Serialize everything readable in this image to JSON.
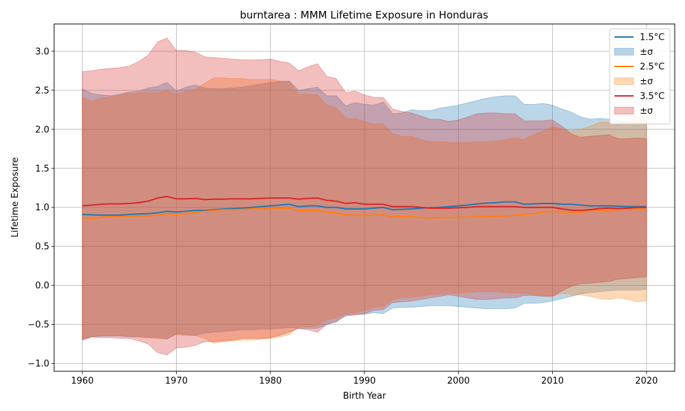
{
  "chart_data": {
    "type": "line",
    "title": "burntarea : MMM Lifetime Exposure in Honduras",
    "xlabel": "Birth Year",
    "ylabel": "Lifetime Exposure",
    "xlim": [
      1957,
      2023
    ],
    "ylim": [
      -1.1,
      3.35
    ],
    "xticks": [
      1960,
      1970,
      1980,
      1990,
      2000,
      2010,
      2020
    ],
    "xtick_labels": [
      "1960",
      "1970",
      "1980",
      "1990",
      "2000",
      "2010",
      "2020"
    ],
    "yticks": [
      -1.0,
      -0.5,
      0.0,
      0.5,
      1.0,
      1.5,
      2.0,
      2.5,
      3.0
    ],
    "ytick_labels": [
      "−1.0",
      "−0.5",
      "0.0",
      "0.5",
      "1.0",
      "1.5",
      "2.0",
      "2.5",
      "3.0"
    ],
    "grid": true,
    "legend_position": "top-right",
    "x": [
      1960,
      1961,
      1962,
      1963,
      1964,
      1965,
      1966,
      1967,
      1968,
      1969,
      1970,
      1971,
      1972,
      1973,
      1974,
      1975,
      1976,
      1977,
      1978,
      1979,
      1980,
      1981,
      1982,
      1983,
      1984,
      1985,
      1986,
      1987,
      1988,
      1989,
      1990,
      1991,
      1992,
      1993,
      1994,
      1995,
      1996,
      1997,
      1998,
      1999,
      2000,
      2001,
      2002,
      2003,
      2004,
      2005,
      2006,
      2007,
      2008,
      2009,
      2010,
      2011,
      2012,
      2013,
      2014,
      2015,
      2016,
      2017,
      2018,
      2019,
      2020
    ],
    "series": [
      {
        "name": "1.5°C",
        "band_label": "±σ",
        "color": "#1f77b4",
        "band_color": "#1f77b4",
        "mean": [
          0.91,
          0.905,
          0.9,
          0.9,
          0.9,
          0.91,
          0.915,
          0.92,
          0.93,
          0.95,
          0.94,
          0.95,
          0.96,
          0.96,
          0.97,
          0.98,
          0.985,
          0.99,
          1.0,
          1.01,
          1.02,
          1.03,
          1.04,
          1.01,
          1.02,
          1.02,
          1.0,
          1.0,
          0.98,
          0.98,
          0.98,
          0.99,
          1.0,
          0.97,
          0.975,
          0.98,
          0.99,
          0.995,
          1.0,
          1.01,
          1.02,
          1.03,
          1.045,
          1.055,
          1.06,
          1.07,
          1.07,
          1.04,
          1.045,
          1.05,
          1.05,
          1.04,
          1.04,
          1.03,
          1.02,
          1.02,
          1.02,
          1.015,
          1.01,
          1.01,
          1.01
        ],
        "upper": [
          2.52,
          2.46,
          2.44,
          2.43,
          2.45,
          2.48,
          2.49,
          2.53,
          2.55,
          2.6,
          2.49,
          2.54,
          2.57,
          2.53,
          2.52,
          2.52,
          2.53,
          2.54,
          2.56,
          2.58,
          2.6,
          2.61,
          2.62,
          2.5,
          2.52,
          2.54,
          2.43,
          2.43,
          2.3,
          2.34,
          2.32,
          2.31,
          2.35,
          2.2,
          2.21,
          2.25,
          2.24,
          2.24,
          2.27,
          2.29,
          2.31,
          2.34,
          2.37,
          2.4,
          2.42,
          2.43,
          2.43,
          2.32,
          2.32,
          2.33,
          2.31,
          2.26,
          2.22,
          2.16,
          2.13,
          2.14,
          2.13,
          2.11,
          2.09,
          2.08,
          2.08
        ],
        "lower": [
          -0.7,
          -0.66,
          -0.65,
          -0.65,
          -0.65,
          -0.66,
          -0.66,
          -0.67,
          -0.67,
          -0.69,
          -0.62,
          -0.63,
          -0.64,
          -0.61,
          -0.6,
          -0.59,
          -0.58,
          -0.57,
          -0.57,
          -0.56,
          -0.56,
          -0.55,
          -0.54,
          -0.55,
          -0.55,
          -0.55,
          -0.5,
          -0.47,
          -0.38,
          -0.37,
          -0.37,
          -0.35,
          -0.36,
          -0.29,
          -0.28,
          -0.28,
          -0.27,
          -0.26,
          -0.26,
          -0.26,
          -0.27,
          -0.28,
          -0.29,
          -0.3,
          -0.3,
          -0.3,
          -0.29,
          -0.23,
          -0.23,
          -0.22,
          -0.2,
          -0.17,
          -0.14,
          -0.11,
          -0.09,
          -0.08,
          -0.07,
          -0.06,
          -0.06,
          -0.06,
          -0.05
        ]
      },
      {
        "name": "2.5°C",
        "band_label": "±σ",
        "color": "#ff7f0e",
        "band_color": "#ff7f0e",
        "mean": [
          0.87,
          0.86,
          0.87,
          0.88,
          0.88,
          0.885,
          0.89,
          0.89,
          0.9,
          0.92,
          0.91,
          0.92,
          0.93,
          0.95,
          0.96,
          0.97,
          0.97,
          0.975,
          0.98,
          0.98,
          0.985,
          0.985,
          0.985,
          0.96,
          0.96,
          0.96,
          0.94,
          0.93,
          0.9,
          0.9,
          0.895,
          0.9,
          0.905,
          0.88,
          0.88,
          0.88,
          0.87,
          0.865,
          0.87,
          0.87,
          0.87,
          0.875,
          0.88,
          0.88,
          0.885,
          0.89,
          0.9,
          0.91,
          0.92,
          0.94,
          0.95,
          0.94,
          0.94,
          0.94,
          0.95,
          0.96,
          0.965,
          0.97,
          0.975,
          0.98,
          0.98
        ],
        "upper": [
          2.41,
          2.36,
          2.4,
          2.42,
          2.44,
          2.46,
          2.47,
          2.47,
          2.47,
          2.5,
          2.45,
          2.49,
          2.51,
          2.59,
          2.66,
          2.66,
          2.65,
          2.65,
          2.64,
          2.64,
          2.64,
          2.62,
          2.61,
          2.45,
          2.45,
          2.44,
          2.31,
          2.28,
          2.14,
          2.14,
          2.1,
          2.07,
          2.07,
          1.94,
          1.91,
          1.91,
          1.87,
          1.84,
          1.84,
          1.83,
          1.83,
          1.83,
          1.84,
          1.84,
          1.85,
          1.87,
          1.89,
          1.87,
          1.93,
          1.98,
          2.04,
          2.0,
          1.98,
          2.0,
          2.04,
          2.09,
          2.09,
          2.06,
          2.11,
          2.16,
          2.12
        ],
        "lower": [
          -0.68,
          -0.66,
          -0.64,
          -0.64,
          -0.64,
          -0.65,
          -0.66,
          -0.67,
          -0.68,
          -0.68,
          -0.63,
          -0.64,
          -0.64,
          -0.68,
          -0.74,
          -0.72,
          -0.71,
          -0.7,
          -0.7,
          -0.69,
          -0.68,
          -0.66,
          -0.63,
          -0.53,
          -0.53,
          -0.52,
          -0.44,
          -0.42,
          -0.36,
          -0.35,
          -0.32,
          -0.28,
          -0.27,
          -0.18,
          -0.16,
          -0.15,
          -0.14,
          -0.12,
          -0.11,
          -0.1,
          -0.1,
          -0.09,
          -0.08,
          -0.08,
          -0.08,
          -0.09,
          -0.1,
          -0.1,
          -0.12,
          -0.13,
          -0.14,
          -0.1,
          -0.12,
          -0.12,
          -0.14,
          -0.17,
          -0.18,
          -0.16,
          -0.18,
          -0.21,
          -0.2
        ]
      },
      {
        "name": "3.5°C",
        "band_label": "±σ",
        "color": "#d62728",
        "band_color": "#d62728",
        "mean": [
          1.02,
          1.03,
          1.04,
          1.045,
          1.045,
          1.05,
          1.06,
          1.08,
          1.12,
          1.14,
          1.11,
          1.11,
          1.115,
          1.1,
          1.105,
          1.105,
          1.11,
          1.11,
          1.11,
          1.115,
          1.12,
          1.12,
          1.12,
          1.105,
          1.115,
          1.12,
          1.09,
          1.08,
          1.05,
          1.06,
          1.04,
          1.04,
          1.04,
          1.01,
          1.01,
          1.01,
          1.0,
          0.99,
          0.99,
          0.99,
          0.995,
          1.0,
          1.01,
          1.01,
          1.01,
          1.01,
          1.01,
          1.0,
          1.0,
          1.0,
          1.0,
          0.98,
          0.965,
          0.96,
          0.97,
          0.985,
          0.99,
          0.985,
          0.99,
          1.0,
          1.0
        ],
        "upper": [
          2.74,
          2.75,
          2.77,
          2.78,
          2.79,
          2.81,
          2.87,
          2.95,
          3.12,
          3.17,
          3.01,
          3.01,
          2.99,
          2.93,
          2.92,
          2.91,
          2.9,
          2.89,
          2.89,
          2.89,
          2.9,
          2.87,
          2.85,
          2.75,
          2.8,
          2.84,
          2.68,
          2.65,
          2.47,
          2.49,
          2.44,
          2.41,
          2.41,
          2.26,
          2.23,
          2.21,
          2.17,
          2.13,
          2.13,
          2.1,
          2.12,
          2.16,
          2.2,
          2.21,
          2.21,
          2.2,
          2.2,
          2.11,
          2.11,
          2.11,
          2.12,
          2.04,
          1.94,
          1.9,
          1.91,
          1.92,
          1.93,
          1.88,
          1.88,
          1.89,
          1.88
        ],
        "lower": [
          -0.7,
          -0.66,
          -0.67,
          -0.67,
          -0.68,
          -0.68,
          -0.71,
          -0.75,
          -0.86,
          -0.89,
          -0.8,
          -0.79,
          -0.77,
          -0.72,
          -0.72,
          -0.71,
          -0.7,
          -0.68,
          -0.68,
          -0.68,
          -0.67,
          -0.64,
          -0.6,
          -0.55,
          -0.57,
          -0.6,
          -0.5,
          -0.46,
          -0.39,
          -0.38,
          -0.36,
          -0.32,
          -0.31,
          -0.22,
          -0.21,
          -0.2,
          -0.18,
          -0.16,
          -0.14,
          -0.12,
          -0.14,
          -0.16,
          -0.18,
          -0.18,
          -0.17,
          -0.16,
          -0.16,
          -0.13,
          -0.13,
          -0.14,
          -0.14,
          -0.07,
          -0.01,
          0.02,
          0.03,
          0.04,
          0.05,
          0.08,
          0.09,
          0.1,
          0.11
        ]
      }
    ]
  }
}
